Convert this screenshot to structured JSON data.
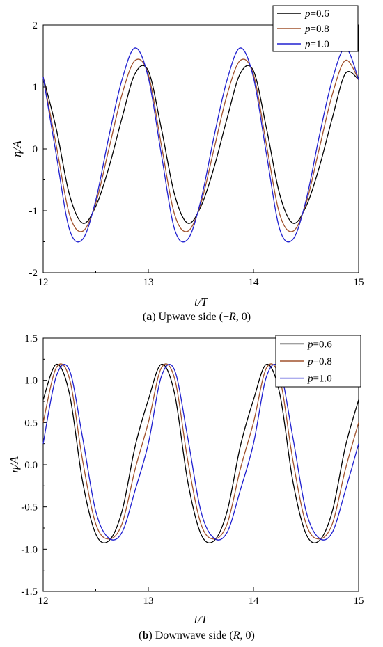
{
  "chart_data": [
    {
      "type": "line",
      "caption_letter": "a",
      "caption_text": "Upwave side (−R, 0)",
      "xlabel": "t/T",
      "ylabel": "η/A",
      "xlim": [
        12,
        15
      ],
      "ylim": [
        -2,
        2
      ],
      "xticks": [
        "12",
        "13",
        "14",
        "15"
      ],
      "yticks": [
        "-2",
        "-1",
        "0",
        "1",
        "2"
      ],
      "legend_position": "top-right",
      "series": [
        {
          "name": "p=0.6",
          "color": "#000000",
          "x": [
            12.0,
            12.125,
            12.25,
            12.375,
            12.5,
            12.625,
            12.75,
            12.875,
            13.0,
            13.125,
            13.25,
            13.375,
            13.5,
            13.625,
            13.75,
            13.875,
            14.0,
            14.125,
            14.25,
            14.375,
            14.5,
            14.625,
            14.75,
            14.875,
            15.0
          ],
          "y": [
            1.16,
            0.32,
            -0.74,
            -1.2,
            -0.93,
            -0.3,
            0.5,
            1.22,
            1.26,
            0.32,
            -0.74,
            -1.2,
            -0.93,
            -0.3,
            0.5,
            1.22,
            1.26,
            0.32,
            -0.74,
            -1.2,
            -0.93,
            -0.3,
            0.5,
            1.22,
            1.12
          ]
        },
        {
          "name": "p=0.8",
          "color": "#a0522d",
          "x": [
            12.0,
            12.125,
            12.25,
            12.375,
            12.5,
            12.625,
            12.75,
            12.875,
            13.0,
            13.125,
            13.25,
            13.375,
            13.5,
            13.625,
            13.75,
            13.875,
            14.0,
            14.125,
            14.25,
            14.375,
            14.5,
            14.625,
            14.75,
            14.875,
            15.0
          ],
          "y": [
            1.16,
            0.05,
            -1.06,
            -1.33,
            -0.88,
            0.0,
            0.88,
            1.43,
            1.2,
            0.05,
            -1.06,
            -1.33,
            -0.88,
            0.0,
            0.88,
            1.43,
            1.2,
            0.05,
            -1.06,
            -1.33,
            -0.88,
            0.0,
            0.88,
            1.43,
            1.12
          ]
        },
        {
          "name": "p=1.0",
          "color": "#2020d0",
          "x": [
            12.0,
            12.125,
            12.25,
            12.375,
            12.5,
            12.625,
            12.75,
            12.875,
            13.0,
            13.125,
            13.25,
            13.375,
            13.5,
            13.625,
            13.75,
            13.875,
            14.0,
            14.125,
            14.25,
            14.375,
            14.5,
            14.625,
            14.75,
            14.875,
            15.0
          ],
          "y": [
            1.16,
            -0.1,
            -1.3,
            -1.46,
            -0.83,
            0.2,
            1.12,
            1.63,
            1.15,
            -0.1,
            -1.3,
            -1.46,
            -0.83,
            0.2,
            1.12,
            1.63,
            1.15,
            -0.1,
            -1.3,
            -1.46,
            -0.83,
            0.2,
            1.12,
            1.63,
            1.12
          ]
        }
      ]
    },
    {
      "type": "line",
      "caption_letter": "b",
      "caption_text": "Downwave side (R, 0)",
      "xlabel": "t/T",
      "ylabel": "η/A",
      "xlim": [
        12,
        15
      ],
      "ylim": [
        -1.5,
        1.5
      ],
      "xticks": [
        "12",
        "13",
        "14",
        "15"
      ],
      "yticks": [
        "-1.5",
        "-1.0",
        "-0.5",
        "0.0",
        "0.5",
        "1.0",
        "1.5"
      ],
      "legend_position": "top-right",
      "series": [
        {
          "name": "p=0.6",
          "color": "#000000",
          "x": [
            12.0,
            12.125,
            12.25,
            12.375,
            12.5,
            12.625,
            12.75,
            12.875,
            13.0,
            13.125,
            13.25,
            13.375,
            13.5,
            13.625,
            13.75,
            13.875,
            14.0,
            14.125,
            14.25,
            14.375,
            14.5,
            14.625,
            14.75,
            14.875,
            15.0
          ],
          "y": [
            0.77,
            1.19,
            0.84,
            -0.2,
            -0.82,
            -0.9,
            -0.55,
            0.22,
            0.77,
            1.19,
            0.84,
            -0.2,
            -0.82,
            -0.9,
            -0.55,
            0.22,
            0.77,
            1.19,
            0.84,
            -0.2,
            -0.82,
            -0.9,
            -0.55,
            0.22,
            0.77
          ]
        },
        {
          "name": "p=0.8",
          "color": "#a0522d",
          "x": [
            12.0,
            12.125,
            12.25,
            12.375,
            12.5,
            12.625,
            12.75,
            12.875,
            13.0,
            13.125,
            13.25,
            13.375,
            13.5,
            13.625,
            13.75,
            13.875,
            14.0,
            14.125,
            14.25,
            14.375,
            14.5,
            14.625,
            14.75,
            14.875,
            15.0
          ],
          "y": [
            0.5,
            1.15,
            1.02,
            0.05,
            -0.7,
            -0.88,
            -0.7,
            -0.05,
            0.5,
            1.15,
            1.02,
            0.05,
            -0.7,
            -0.88,
            -0.7,
            -0.05,
            0.5,
            1.15,
            1.02,
            0.05,
            -0.7,
            -0.88,
            -0.7,
            -0.05,
            0.5
          ]
        },
        {
          "name": "p=1.0",
          "color": "#2020d0",
          "x": [
            12.0,
            12.125,
            12.25,
            12.375,
            12.5,
            12.625,
            12.75,
            12.875,
            13.0,
            13.125,
            13.25,
            13.375,
            13.5,
            13.625,
            13.75,
            13.875,
            14.0,
            14.125,
            14.25,
            14.375,
            14.5,
            14.625,
            14.75,
            14.875,
            15.0
          ],
          "y": [
            0.25,
            1.05,
            1.12,
            0.32,
            -0.55,
            -0.87,
            -0.8,
            -0.3,
            0.25,
            1.05,
            1.12,
            0.32,
            -0.55,
            -0.87,
            -0.8,
            -0.3,
            0.25,
            1.05,
            1.12,
            0.32,
            -0.55,
            -0.87,
            -0.8,
            -0.3,
            0.25
          ]
        }
      ]
    }
  ]
}
